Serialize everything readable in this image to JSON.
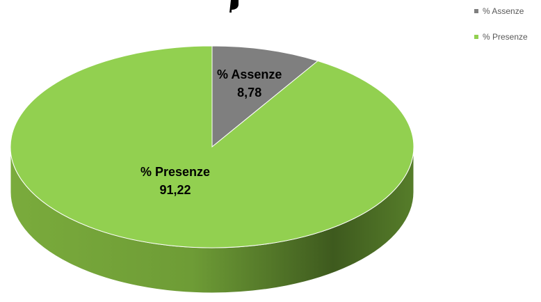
{
  "chart_data": {
    "type": "pie",
    "style": "3d",
    "decimal_separator": ",",
    "slices": [
      {
        "name": "% Assenze",
        "value": 8.78,
        "label_name": "% Assenze",
        "label_value": "8,78",
        "color": "#7f7f7f"
      },
      {
        "name": "% Presenze",
        "value": 91.22,
        "label_name": "% Presenze",
        "label_value": "91,22",
        "color": "#92d050"
      }
    ],
    "legend": {
      "position": "top-right",
      "entries": [
        "% Assenze",
        "% Presenze"
      ]
    }
  }
}
